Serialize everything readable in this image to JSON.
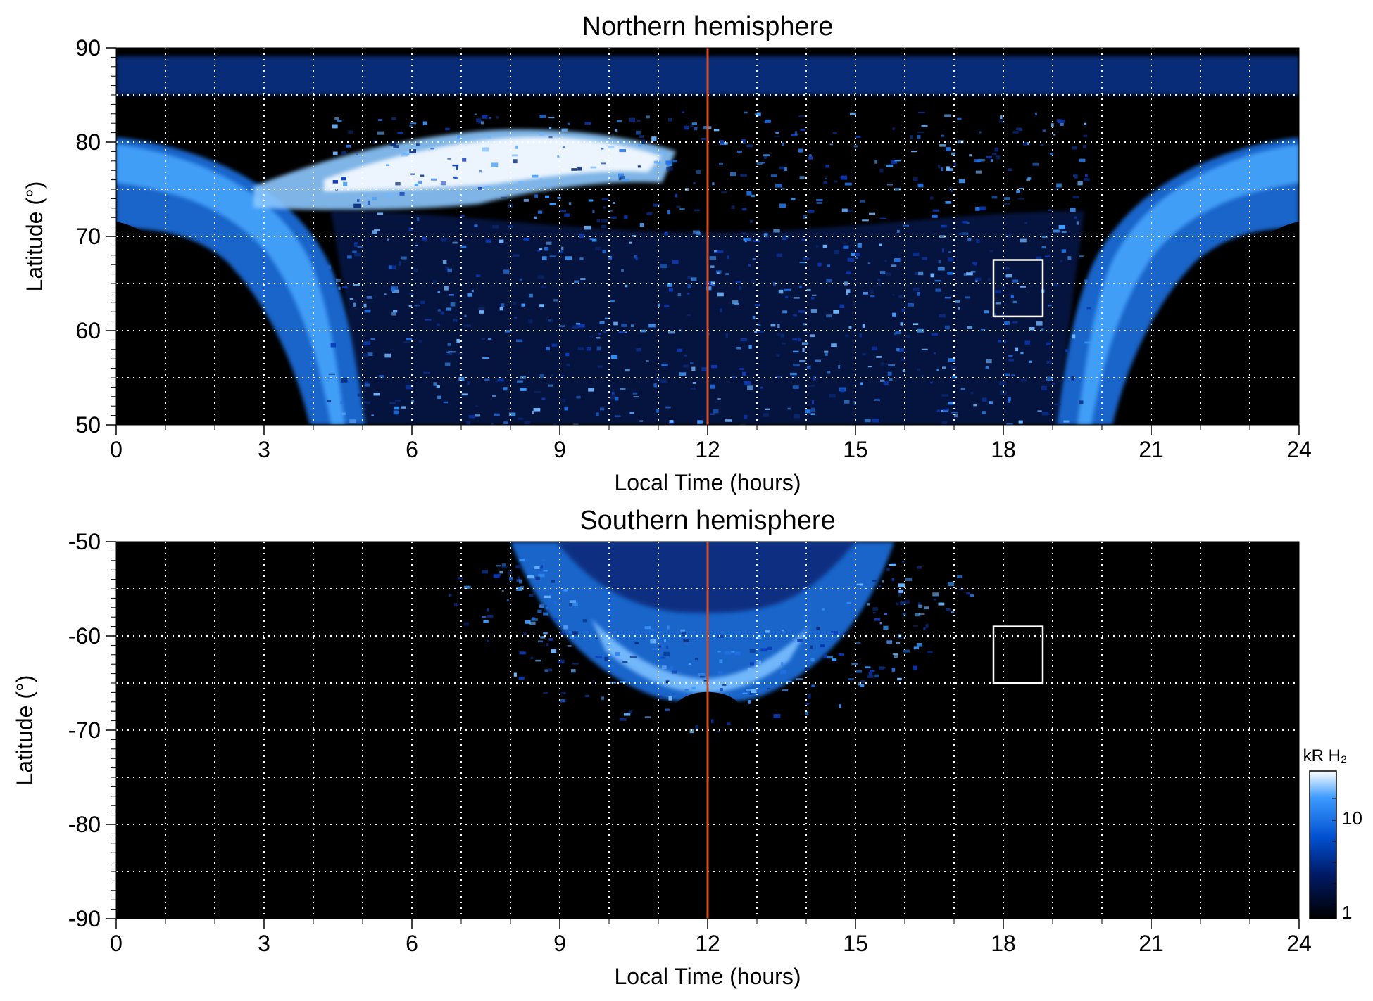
{
  "colorbar": {
    "unit": "kR H₂",
    "scale": "log",
    "range": [
      1,
      30
    ],
    "tick_labels": [
      "10",
      "1"
    ],
    "colors": [
      "#000000",
      "#001a66",
      "#0050d0",
      "#3d9bff",
      "#ffffff"
    ]
  },
  "colors": {
    "background": "#000000",
    "noon_line": "#d94a1a",
    "grid": "#ffffff",
    "highlight_box": "#ffffff"
  },
  "chart_data": [
    {
      "type": "heatmap",
      "title": "Northern hemisphere",
      "xlabel": "Local Time (hours)",
      "ylabel": "Latitude (°)",
      "xlim": [
        0,
        24
      ],
      "ylim": [
        50,
        90
      ],
      "x_ticks": [
        "0",
        "3",
        "6",
        "9",
        "12",
        "15",
        "18",
        "21",
        "24"
      ],
      "y_ticks": [
        "50",
        "60",
        "70",
        "80",
        "90"
      ],
      "grid": true,
      "noon_line_lt": 12,
      "highlight_box": {
        "lt": [
          17.8,
          18.8
        ],
        "lat": [
          61.5,
          67.5
        ]
      },
      "features": [
        {
          "name": "main auroral oval",
          "lt_range": [
            0,
            24
          ],
          "lat_range": [
            55,
            80
          ],
          "intensity_kR": 15
        },
        {
          "name": "bright morning arc",
          "lt_range": [
            4,
            11.5
          ],
          "lat_range": [
            73,
            81
          ],
          "intensity_kR": 30
        }
      ]
    },
    {
      "type": "heatmap",
      "title": "Southern hemisphere",
      "xlabel": "Local Time (hours)",
      "ylabel": "Latitude (°)",
      "xlim": [
        0,
        24
      ],
      "ylim": [
        -90,
        -50
      ],
      "x_ticks": [
        "0",
        "3",
        "6",
        "9",
        "12",
        "15",
        "18",
        "21",
        "24"
      ],
      "y_ticks": [
        "-50",
        "-60",
        "-70",
        "-80",
        "-90"
      ],
      "grid": true,
      "noon_line_lt": 12,
      "highlight_box": {
        "lt": [
          17.8,
          18.8
        ],
        "lat": [
          -65,
          -59
        ]
      },
      "features": [
        {
          "name": "dayside auroral arc",
          "lt_range": [
            8,
            16
          ],
          "lat_range": [
            -68,
            -50
          ],
          "intensity_kR": 15
        }
      ]
    }
  ]
}
